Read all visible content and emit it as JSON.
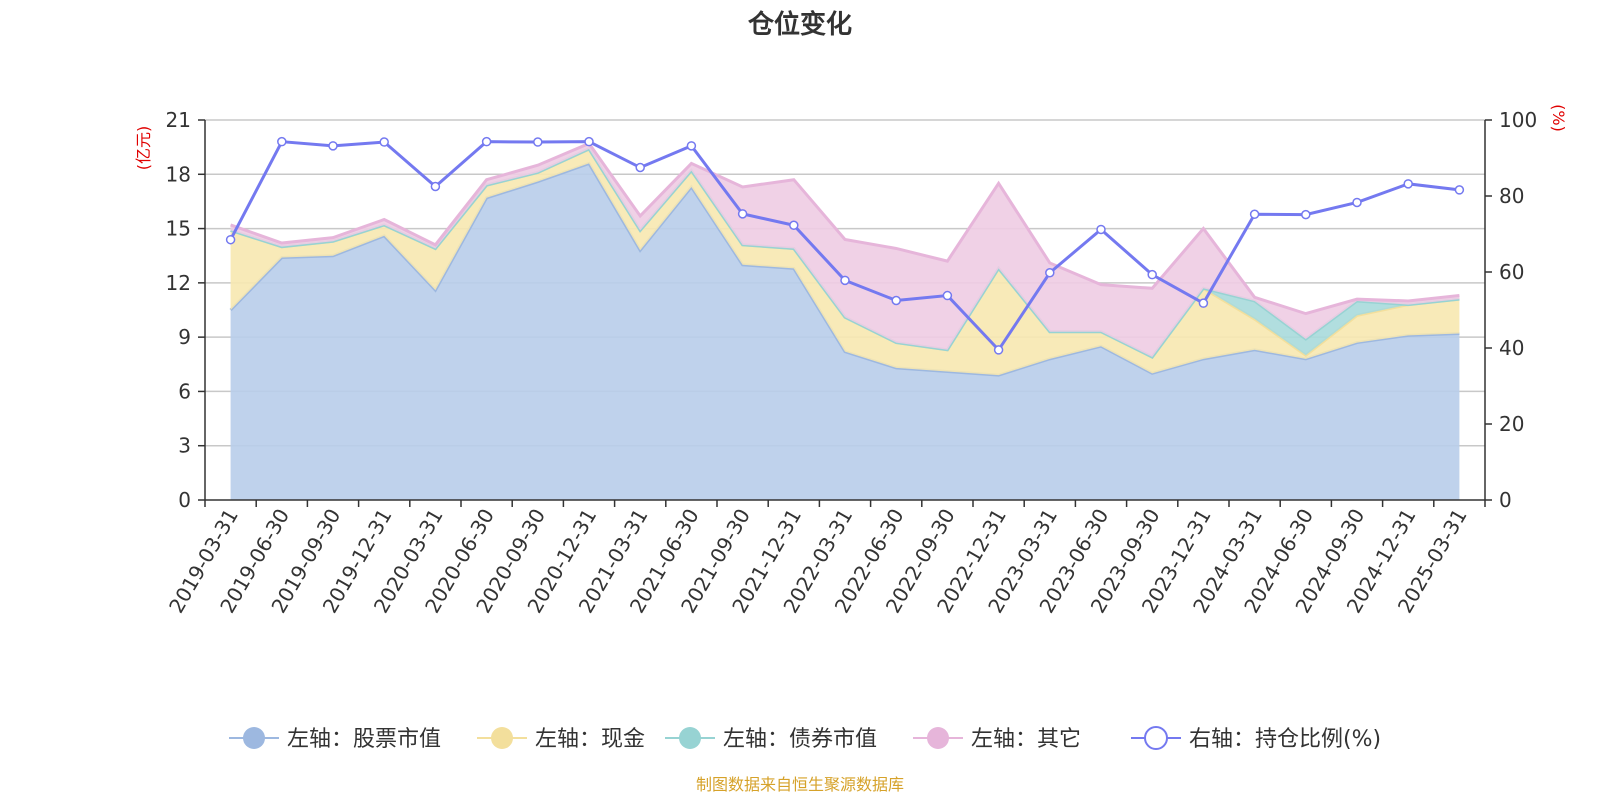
{
  "chart_data": {
    "type": "area",
    "title": "仓位变化",
    "left_unit": "(亿元)",
    "right_unit": "(%)",
    "source": "制图数据来自恒生聚源数据库",
    "categories": [
      "2019-03-31",
      "2019-06-30",
      "2019-09-30",
      "2019-12-31",
      "2020-03-31",
      "2020-06-30",
      "2020-09-30",
      "2020-12-31",
      "2021-03-31",
      "2021-06-30",
      "2021-09-30",
      "2021-12-31",
      "2022-03-31",
      "2022-06-30",
      "2022-09-30",
      "2022-12-31",
      "2023-03-31",
      "2023-06-30",
      "2023-09-30",
      "2023-12-31",
      "2024-03-31",
      "2024-06-30",
      "2024-09-30",
      "2024-12-31",
      "2025-03-31"
    ],
    "y_left": {
      "min": 0,
      "max": 21,
      "ticks": [
        "0",
        "3",
        "6",
        "9",
        "12",
        "15",
        "18",
        "21"
      ]
    },
    "y_right": {
      "min": 0,
      "max": 100,
      "ticks": [
        "0",
        "20",
        "40",
        "60",
        "80",
        "100"
      ]
    },
    "grid": true,
    "legend_position": "bottom",
    "series": [
      {
        "name": "左轴：股票市值",
        "axis": "left",
        "stack": true,
        "color": "#9db8e0",
        "fill": "#b8cdea",
        "values": [
          10.5,
          13.4,
          13.5,
          14.6,
          11.6,
          16.7,
          17.6,
          18.6,
          13.8,
          17.3,
          13.0,
          12.8,
          8.2,
          7.3,
          7.1,
          6.9,
          7.8,
          8.5,
          7.0,
          7.8,
          8.3,
          7.8,
          8.7,
          9.1,
          9.2
        ]
      },
      {
        "name": "左轴：现金",
        "axis": "left",
        "stack": true,
        "color": "#f3df9c",
        "fill": "#f7e8b0",
        "values": [
          4.4,
          0.6,
          0.8,
          0.6,
          2.3,
          0.7,
          0.5,
          0.8,
          1.1,
          0.9,
          1.1,
          1.1,
          1.9,
          1.4,
          1.2,
          5.9,
          1.5,
          0.8,
          0.9,
          3.9,
          1.7,
          0.2,
          1.5,
          1.7,
          1.9
        ]
      },
      {
        "name": "左轴：债券市值",
        "axis": "left",
        "stack": true,
        "color": "#97d3d3",
        "fill": "#a9dadb",
        "values": [
          0,
          0,
          0,
          0,
          0,
          0,
          0,
          0,
          0,
          0,
          0,
          0,
          0,
          0,
          0,
          0,
          0,
          0,
          0,
          0,
          1.0,
          0.9,
          0.8,
          0,
          0
        ]
      },
      {
        "name": "左轴：其它",
        "axis": "left",
        "stack": true,
        "color": "#e6b5da",
        "fill": "#eecce3",
        "values": [
          0.3,
          0.2,
          0.2,
          0.3,
          0.2,
          0.3,
          0.4,
          0.3,
          0.8,
          0.4,
          3.2,
          3.8,
          4.3,
          5.2,
          4.9,
          4.7,
          3.8,
          2.6,
          3.8,
          3.3,
          0.2,
          1.4,
          0.1,
          0.2,
          0.2
        ]
      },
      {
        "name": "右轴：持仓比例(%)",
        "axis": "right",
        "color": "#7479f0",
        "values": [
          68.5,
          94.3,
          93.2,
          94.2,
          82.5,
          94.3,
          94.2,
          94.3,
          87.5,
          93.2,
          75.3,
          72.3,
          57.8,
          52.5,
          53.8,
          39.5,
          59.8,
          71.2,
          59.3,
          51.8,
          75.2,
          75.1,
          78.3,
          83.2,
          81.6
        ]
      }
    ]
  }
}
